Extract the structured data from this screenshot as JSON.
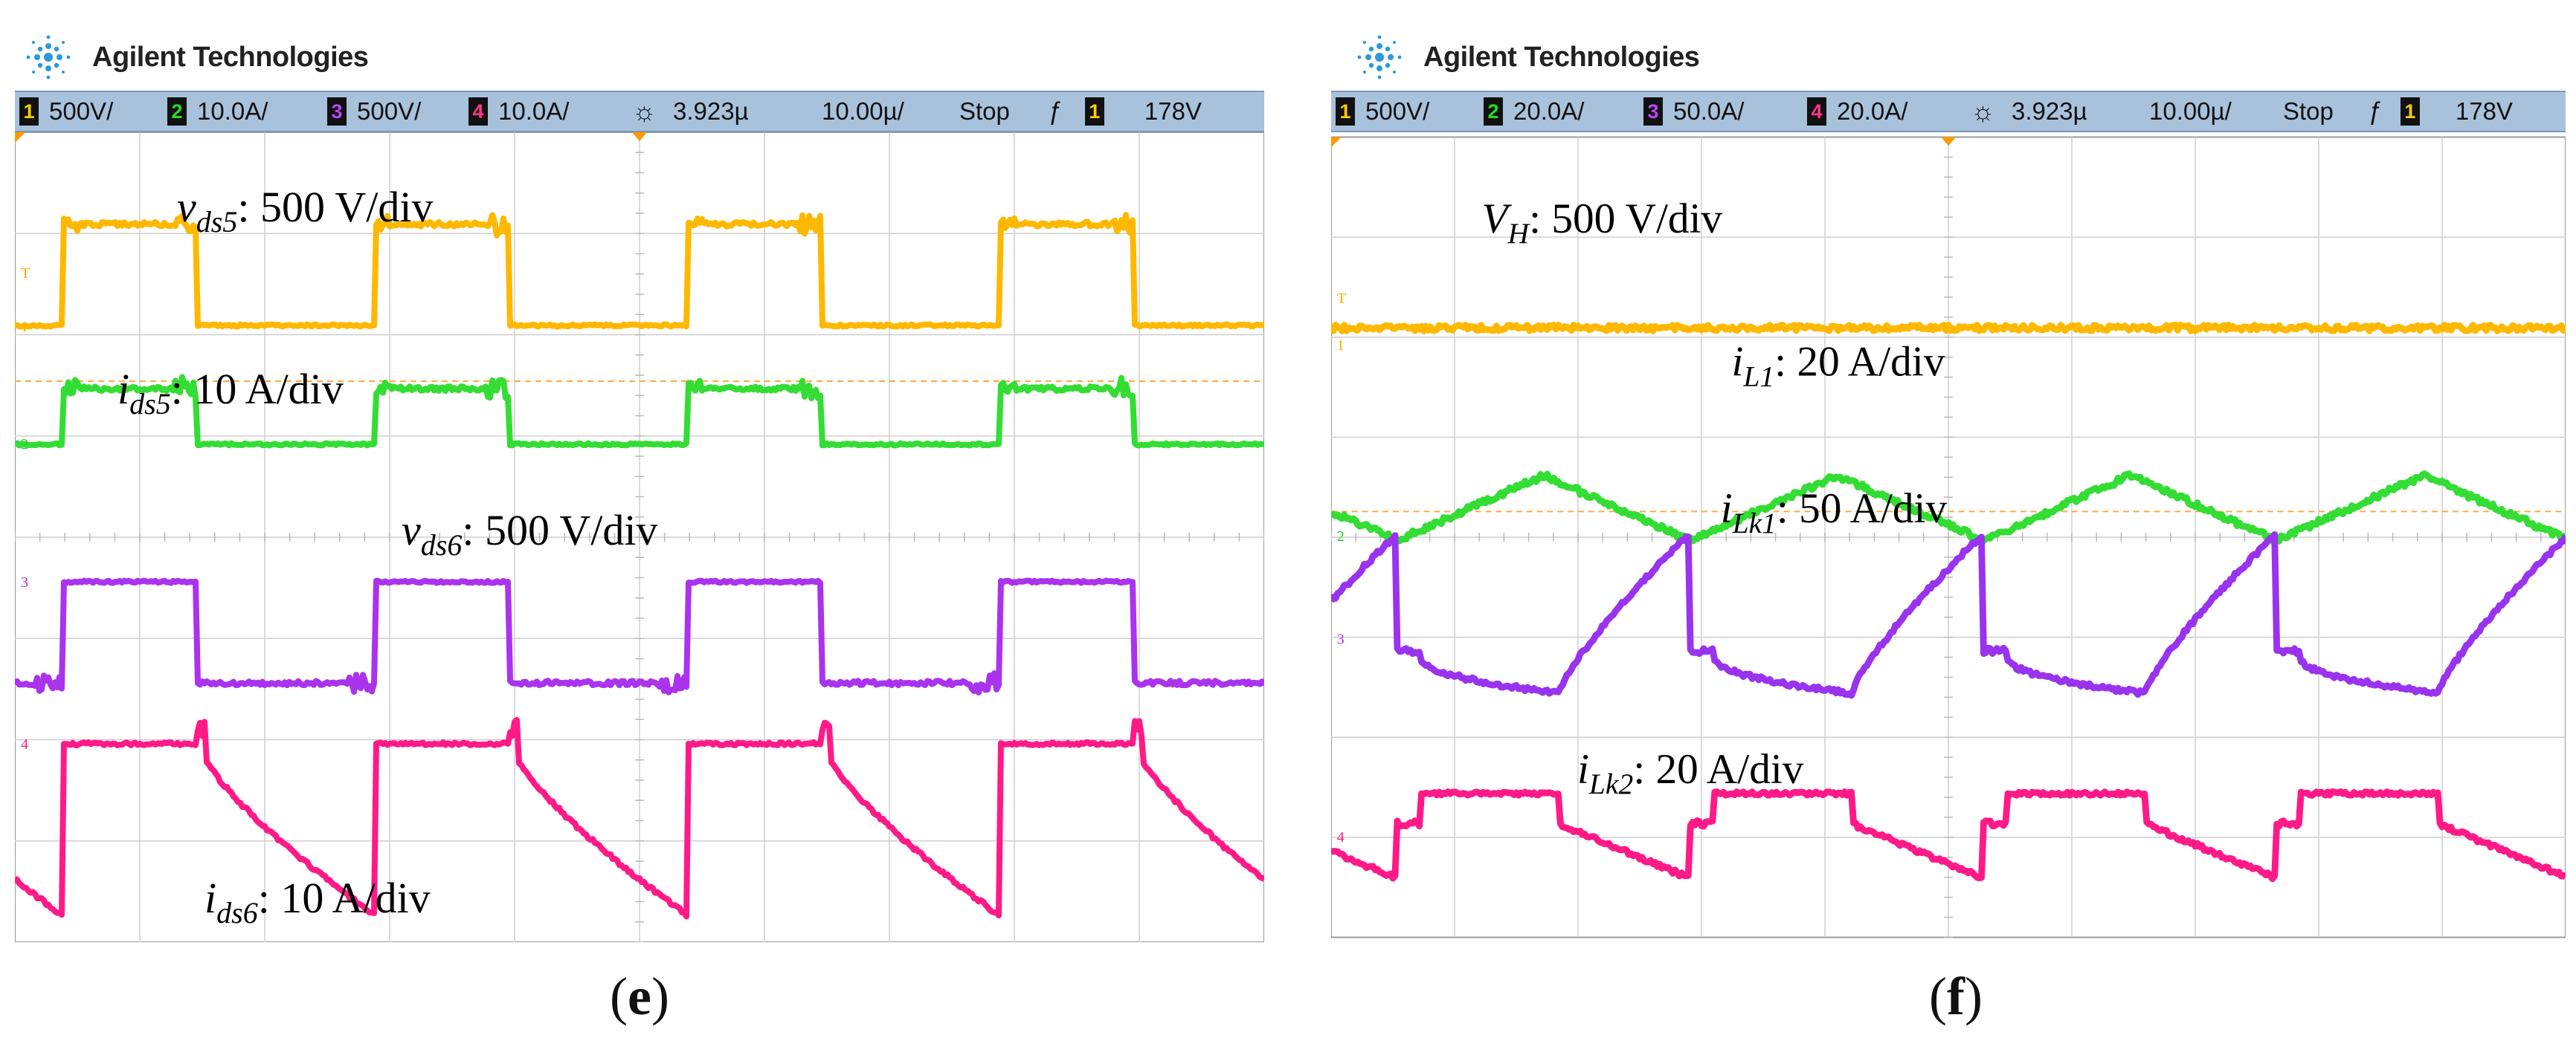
{
  "panels": [
    {
      "brand": "Agilent Technologies",
      "status": {
        "ch1_num": "1",
        "ch1_scale": "500V/",
        "ch2_num": "2",
        "ch2_scale": "10.0A/",
        "ch3_num": "3",
        "ch3_scale": "500V/",
        "ch4_num": "4",
        "ch4_scale": "10.0A/",
        "delay": "3.923µ",
        "timebase": "10.00µ/",
        "mode": "Stop",
        "trig_src": "1",
        "trig_level": "178V"
      },
      "labels": {
        "l1_main": "v",
        "l1_sub": "ds5",
        "l1_rest": ": 500 V/div",
        "l2_main": "i",
        "l2_sub": "ds5",
        "l2_rest": ": 10 A/div",
        "l3_main": "v",
        "l3_sub": "ds6",
        "l3_rest": ": 500 V/div",
        "l4_main": "i",
        "l4_sub": "ds6",
        "l4_rest": ": 10 A/div"
      },
      "markers": {
        "m1": "1",
        "m2": "2",
        "m3": "3",
        "m4": "4",
        "mt": "T"
      },
      "caption": "e"
    },
    {
      "brand": "Agilent Technologies",
      "status": {
        "ch1_num": "1",
        "ch1_scale": "500V/",
        "ch2_num": "2",
        "ch2_scale": "20.0A/",
        "ch3_num": "3",
        "ch3_scale": "50.0A/",
        "ch4_num": "4",
        "ch4_scale": "20.0A/",
        "delay": "3.923µ",
        "timebase": "10.00µ/",
        "mode": "Stop",
        "trig_src": "1",
        "trig_level": "178V"
      },
      "labels": {
        "l1_main": "V",
        "l1_sub": "H",
        "l1_rest": ": 500 V/div",
        "l2_main": "i",
        "l2_sub": "L1",
        "l2_rest": ": 20 A/div",
        "l3_main": "i",
        "l3_sub": "Lk1",
        "l3_rest": ": 50 A/div",
        "l4_main": "i",
        "l4_sub": "Lk2",
        "l4_rest": ": 20 A/div"
      },
      "markers": {
        "m1": "1",
        "m2": "2",
        "m3": "3",
        "m4": "4",
        "mt": "T"
      },
      "caption": "f"
    }
  ],
  "chart_data": [
    {
      "type": "line",
      "panel": "e",
      "x_unit": "time",
      "time_per_div": "10.00 µs",
      "divisions": {
        "x": 10,
        "y": 8
      },
      "switching_period_div": 2.5,
      "series": [
        {
          "name": "v_ds5",
          "scale": "500 V/div",
          "color": "#ffb800",
          "waveform": "square",
          "low_div": 0,
          "high_div": 1.0,
          "duty": 0.43
        },
        {
          "name": "i_ds5",
          "scale": "10 A/div",
          "color": "#33dd33",
          "waveform": "square",
          "low_div": 0,
          "high_div": 0.55,
          "duty": 0.43
        },
        {
          "name": "v_ds6",
          "scale": "500 V/div",
          "color": "#aa33ee",
          "waveform": "square-inverted",
          "low_div": -1.0,
          "high_div": 0,
          "duty": 0.43
        },
        {
          "name": "i_ds6",
          "scale": "10 A/div",
          "color": "#ff1a88",
          "waveform": "decay",
          "low_div": -1.7,
          "high_div": 0,
          "duty": 0.43
        }
      ]
    },
    {
      "type": "line",
      "panel": "f",
      "x_unit": "time",
      "time_per_div": "10.00 µs",
      "divisions": {
        "x": 10,
        "y": 8
      },
      "switching_period_div": 2.5,
      "series": [
        {
          "name": "V_H",
          "scale": "500 V/div",
          "color": "#ffb800",
          "waveform": "dc",
          "level_div": 0.9
        },
        {
          "name": "i_L1",
          "scale": "20 A/div",
          "color": "#33dd33",
          "waveform": "triangle",
          "low_div": -0.4,
          "high_div": 0.25
        },
        {
          "name": "i_Lk1",
          "scale": "50 A/div",
          "color": "#9933ee",
          "waveform": "sawtooth-recovery",
          "low_div": -0.35,
          "high_div": 1.25
        },
        {
          "name": "i_Lk2",
          "scale": "20 A/div",
          "color": "#ff1a88",
          "waveform": "step",
          "low_div": -0.55,
          "high_div": 0.3
        }
      ]
    }
  ]
}
